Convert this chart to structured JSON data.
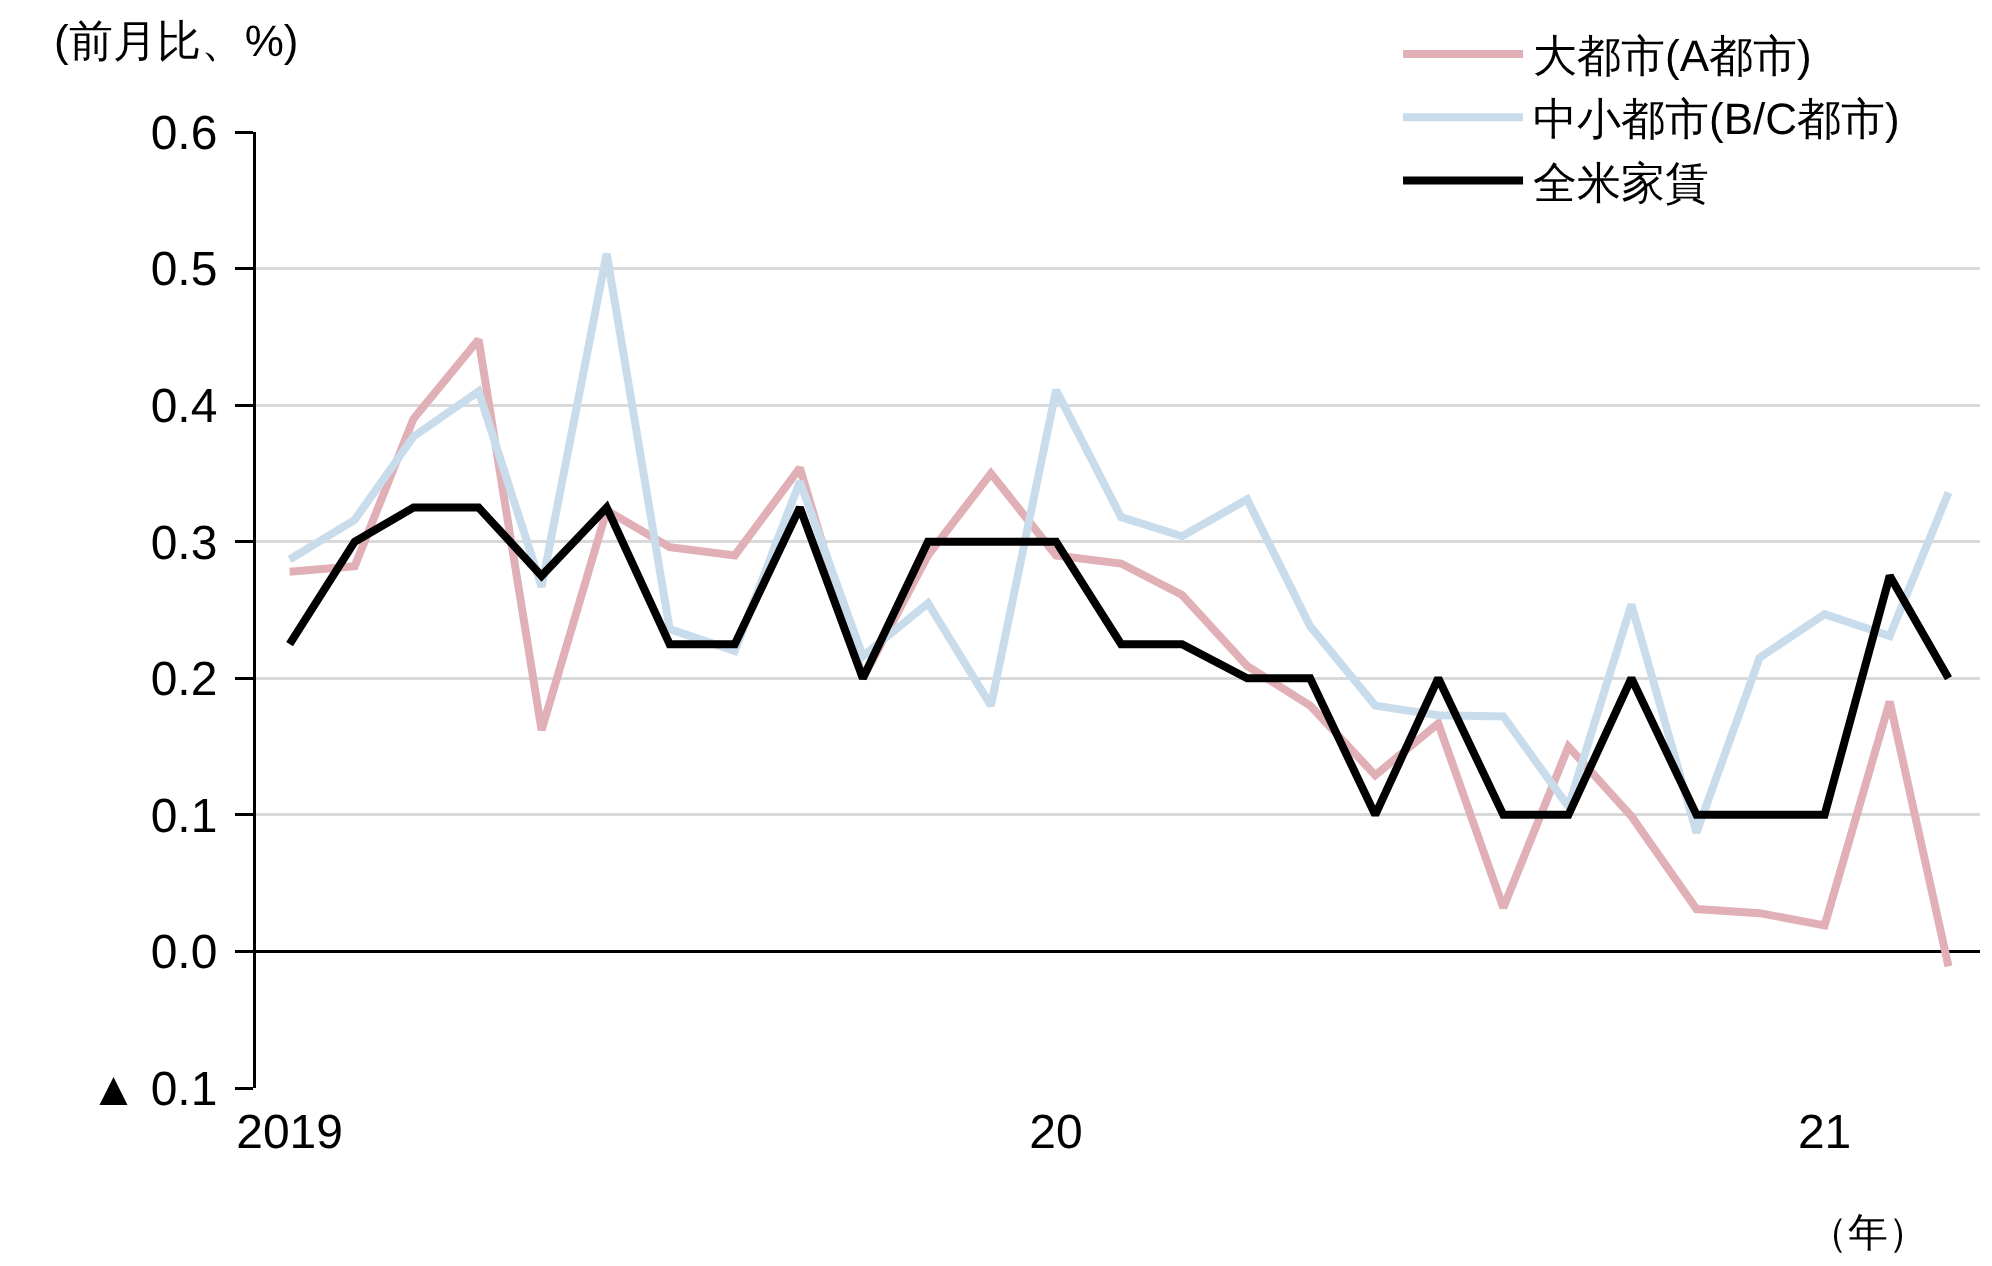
{
  "chart_data": {
    "type": "line",
    "ylabel": "(前月比、%)",
    "xlabel": "（年）",
    "x": [
      "2019-01",
      "2019-02",
      "2019-03",
      "2019-04",
      "2019-05",
      "2019-06",
      "2019-07",
      "2019-08",
      "2019-09",
      "2019-10",
      "2019-11",
      "2019-12",
      "2020-01",
      "2020-02",
      "2020-03",
      "2020-04",
      "2020-05",
      "2020-06",
      "2020-07",
      "2020-08",
      "2020-09",
      "2020-10",
      "2020-11",
      "2020-12",
      "2021-01",
      "2021-02",
      "2021-03"
    ],
    "series": [
      {
        "name": "大都市(A都市)",
        "color": "#e0b0b6",
        "values": [
          0.278,
          0.282,
          0.39,
          0.448,
          0.162,
          0.323,
          0.296,
          0.29,
          0.354,
          0.2,
          0.29,
          0.35,
          0.29,
          0.284,
          0.261,
          0.209,
          0.18,
          0.129,
          0.167,
          0.032,
          0.15,
          0.099,
          0.031,
          0.028,
          0.019,
          0.183,
          -0.011
        ]
      },
      {
        "name": "中小都市(B/C都市)",
        "color": "#c8dcec",
        "values": [
          0.287,
          0.316,
          0.377,
          0.41,
          0.267,
          0.511,
          0.236,
          0.22,
          0.344,
          0.216,
          0.255,
          0.18,
          0.411,
          0.318,
          0.304,
          0.331,
          0.238,
          0.18,
          0.173,
          0.172,
          0.106,
          0.254,
          0.087,
          0.215,
          0.247,
          0.231,
          0.336
        ]
      },
      {
        "name": "全米家賃",
        "color": "#000000",
        "values": [
          0.225,
          0.3,
          0.325,
          0.325,
          0.275,
          0.325,
          0.225,
          0.225,
          0.325,
          0.2,
          0.3,
          0.3,
          0.3,
          0.225,
          0.225,
          0.2,
          0.2,
          0.1,
          0.2,
          0.1,
          0.1,
          0.2,
          0.1,
          0.1,
          0.1,
          0.275,
          0.2
        ]
      }
    ],
    "xlim": [
      "2018-12-16",
      "2021-03-16"
    ],
    "xticks": [
      {
        "value": "2019-01",
        "label": "2019"
      },
      {
        "value": "2020-01",
        "label": "20"
      },
      {
        "value": "2021-01",
        "label": "21"
      }
    ],
    "ylim": [
      -0.1,
      0.6
    ],
    "yticks": [
      {
        "value": -0.1,
        "label": "▲ 0.1"
      },
      {
        "value": 0,
        "label": "0.0"
      },
      {
        "value": 0.1,
        "label": "0.1"
      },
      {
        "value": 0.2,
        "label": "0.2"
      },
      {
        "value": 0.3,
        "label": "0.3"
      },
      {
        "value": 0.4,
        "label": "0.4"
      },
      {
        "value": 0.5,
        "label": "0.5"
      },
      {
        "value": 0.6,
        "label": "0.6"
      }
    ],
    "grid": "y",
    "legend": "top right",
    "marker": "none",
    "line_style": "solid"
  }
}
